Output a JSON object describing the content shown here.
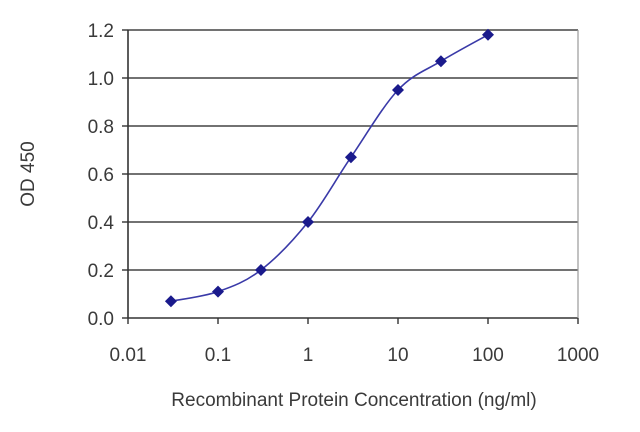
{
  "chart_data": {
    "type": "line",
    "title": "",
    "xlabel": "Recombinant Protein Concentration (ng/ml)",
    "ylabel": "OD 450",
    "x_scale": "log",
    "xlim": [
      0.01,
      1000
    ],
    "ylim": [
      0,
      1.2
    ],
    "x_ticks": [
      "0.01",
      "0.1",
      "1",
      "10",
      "100",
      "1000"
    ],
    "y_ticks": [
      "0.0",
      "0.2",
      "0.4",
      "0.6",
      "0.8",
      "1.0",
      "1.2"
    ],
    "grid": "horizontal",
    "series": [
      {
        "x": [
          0.03,
          0.1,
          0.3,
          1,
          3,
          10,
          30,
          100
        ],
        "y": [
          0.07,
          0.11,
          0.2,
          0.4,
          0.67,
          0.95,
          1.07,
          1.18
        ]
      }
    ],
    "colors": {
      "line": "#3a3aa8",
      "marker": "#1a1a8c",
      "grid": "#444444",
      "axis": "#333333"
    }
  }
}
